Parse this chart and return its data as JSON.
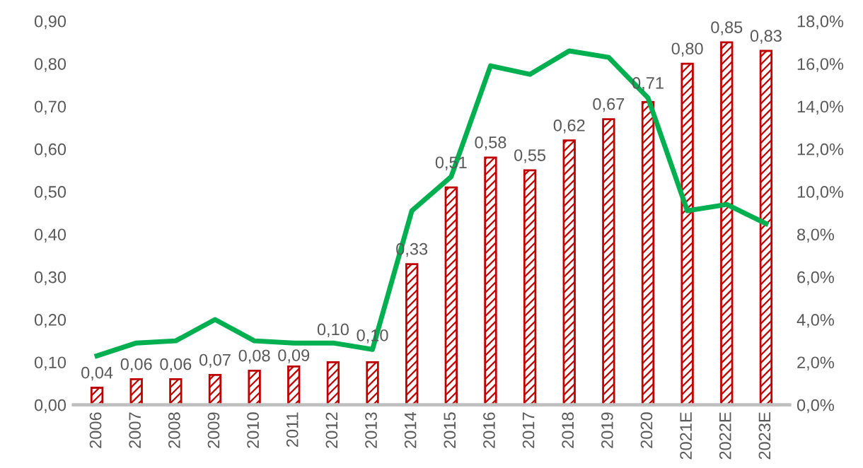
{
  "chart_data": {
    "type": "bar",
    "categories": [
      "2006",
      "2007",
      "2008",
      "2009",
      "2010",
      "2011",
      "2012",
      "2013",
      "2014",
      "2015",
      "2016",
      "2017",
      "2018",
      "2019",
      "2020",
      "2021E",
      "2022E",
      "2023E"
    ],
    "series": [
      {
        "type": "bar",
        "color": "#c00000",
        "values": [
          0.04,
          0.06,
          0.06,
          0.07,
          0.08,
          0.09,
          0.1,
          0.1,
          0.33,
          0.51,
          0.58,
          0.55,
          0.62,
          0.67,
          0.71,
          0.8,
          0.85,
          0.83
        ],
        "value_labels": [
          "0,04",
          "0,06",
          "0,06",
          "0,07",
          "0,08",
          "0,09",
          "0,10",
          "0,10",
          "0,33",
          "0,51",
          "0,58",
          "0,55",
          "0,62",
          "0,67",
          "0,71",
          "0,80",
          "0,85",
          "0,83"
        ]
      },
      {
        "type": "line",
        "axis": "y2",
        "color": "#00b050",
        "values": [
          2.3,
          2.9,
          3.0,
          4.0,
          3.0,
          2.9,
          2.9,
          2.6,
          9.1,
          10.7,
          15.9,
          15.5,
          16.6,
          16.3,
          14.4,
          9.1,
          9.4,
          8.5
        ]
      }
    ],
    "ylim": [
      0,
      0.9
    ],
    "yticks": [
      {
        "value": 0,
        "label": "0,00"
      },
      {
        "value": 0.1,
        "label": "0,10"
      },
      {
        "value": 0.2,
        "label": "0,20"
      },
      {
        "value": 0.3,
        "label": "0,30"
      },
      {
        "value": 0.4,
        "label": "0,40"
      },
      {
        "value": 0.5,
        "label": "0,50"
      },
      {
        "value": 0.6,
        "label": "0,60"
      },
      {
        "value": 0.7,
        "label": "0,70"
      },
      {
        "value": 0.8,
        "label": "0,80"
      },
      {
        "value": 0.9,
        "label": "0,90"
      }
    ],
    "y2lim": [
      0,
      18
    ],
    "y2ticks": [
      {
        "value": 0,
        "label": "0,0%"
      },
      {
        "value": 2,
        "label": "2,0%"
      },
      {
        "value": 4,
        "label": "4,0%"
      },
      {
        "value": 6,
        "label": "6,0%"
      },
      {
        "value": 8,
        "label": "8,0%"
      },
      {
        "value": 10,
        "label": "10,0%"
      },
      {
        "value": 12,
        "label": "12,0%"
      },
      {
        "value": 14,
        "label": "14,0%"
      },
      {
        "value": 16,
        "label": "16,0%"
      },
      {
        "value": 18,
        "label": "18,0%"
      }
    ],
    "grid": false,
    "legend": false,
    "marker": "none",
    "line_style": "solid"
  }
}
